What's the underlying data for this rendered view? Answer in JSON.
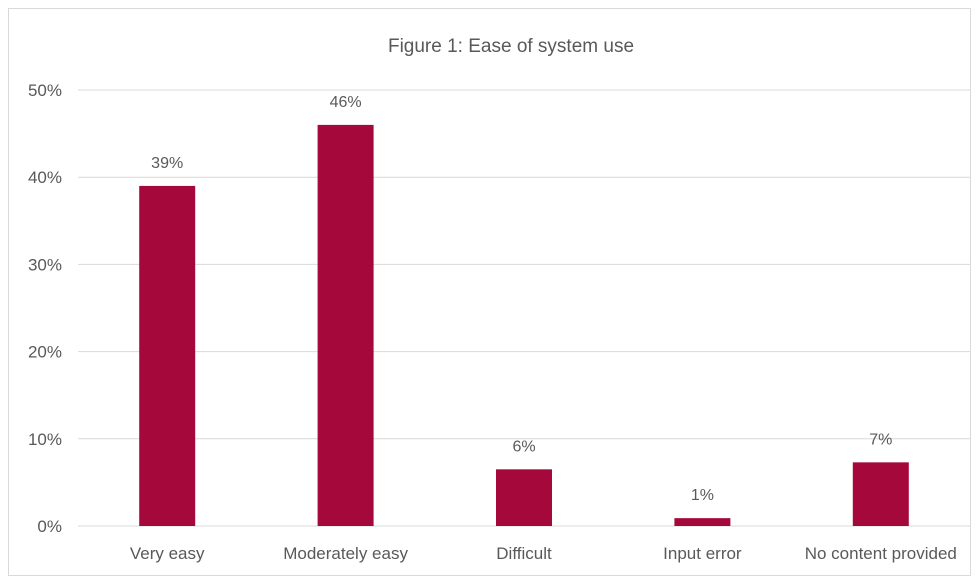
{
  "chart_data": {
    "type": "bar",
    "title": "Figure 1: Ease of system use",
    "xlabel": "",
    "ylabel": "",
    "categories": [
      "Very easy",
      "Moderately easy",
      "Difficult",
      "Input error",
      "No content provided"
    ],
    "values": [
      39,
      46,
      6.5,
      0.9,
      7.3
    ],
    "data_labels": [
      "39%",
      "46%",
      "6%",
      "1%",
      "7%"
    ],
    "ylim": [
      0,
      50
    ],
    "yticks": [
      0,
      10,
      20,
      30,
      40,
      50
    ],
    "ytick_labels": [
      "0%",
      "10%",
      "20%",
      "30%",
      "40%",
      "50%"
    ],
    "grid": true,
    "legend": "none",
    "bar_color": "#a5093c"
  }
}
